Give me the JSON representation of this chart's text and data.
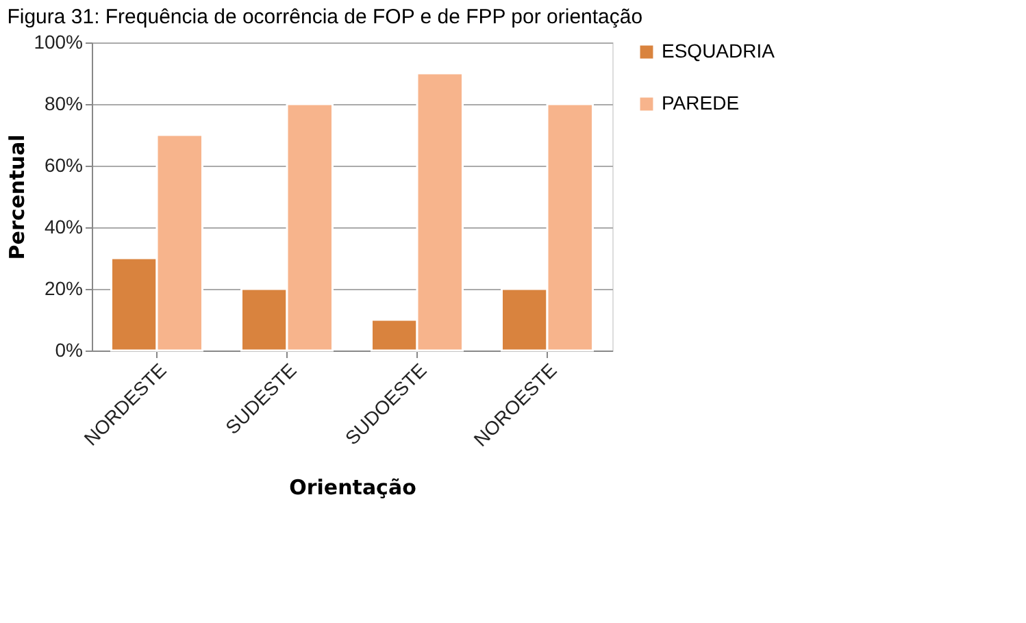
{
  "chart_data": {
    "type": "bar",
    "title": "Figura 31: Frequência de ocorrência de FOP e de FPP por orientação",
    "xlabel": "Orientação",
    "ylabel": "Percentual",
    "categories": [
      "NORDESTE",
      "SUDESTE",
      "SUDOESTE",
      "NOROESTE"
    ],
    "series": [
      {
        "name": "ESQUADRIA",
        "color": "#d9833e",
        "values": [
          30,
          20,
          10,
          20
        ]
      },
      {
        "name": "PAREDE",
        "color": "#f7b48c",
        "values": [
          70,
          80,
          90,
          80
        ]
      }
    ],
    "ylim": [
      0,
      100
    ],
    "yticks": [
      {
        "value": 0,
        "label": "0%"
      },
      {
        "value": 20,
        "label": "20%"
      },
      {
        "value": 40,
        "label": "40%"
      },
      {
        "value": 60,
        "label": "60%"
      },
      {
        "value": 80,
        "label": "80%"
      },
      {
        "value": 100,
        "label": "100%"
      }
    ],
    "grid": "y",
    "legend": "right"
  }
}
